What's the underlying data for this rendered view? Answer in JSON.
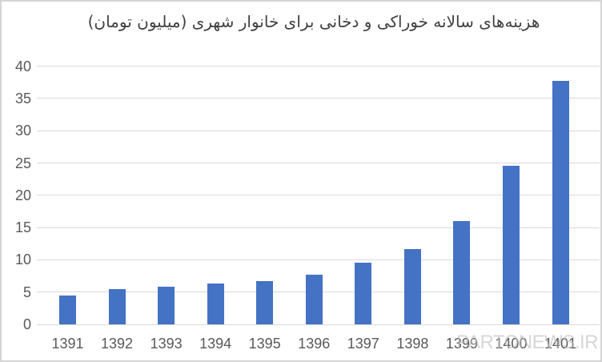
{
  "chart_data": {
    "type": "bar",
    "title": "هزینه‌های سالانه خوراکی و دخانی برای خانوار شهری (میلیون تومان)",
    "categories": [
      "1391",
      "1392",
      "1393",
      "1394",
      "1395",
      "1396",
      "1397",
      "1398",
      "1399",
      "1400",
      "1401"
    ],
    "values": [
      4.5,
      5.5,
      5.8,
      6.3,
      6.7,
      7.7,
      9.5,
      11.7,
      16,
      24.6,
      37.7
    ],
    "xlabel": "",
    "ylabel": "",
    "ylim": [
      0,
      40
    ],
    "yticks": [
      0,
      5,
      10,
      15,
      20,
      25,
      30,
      35,
      40
    ],
    "grid": true,
    "legend_position": "none",
    "bar_color": "#4472c4",
    "gridline_color": "#d9d9d9",
    "axis_text_color": "#595959",
    "title_color": "#404040"
  },
  "watermark": {
    "text": "PARTONEWS.IR",
    "color": "#bdbdbd"
  },
  "frame": {
    "background": "#ffffff",
    "border_color": "#d4d4d4"
  }
}
